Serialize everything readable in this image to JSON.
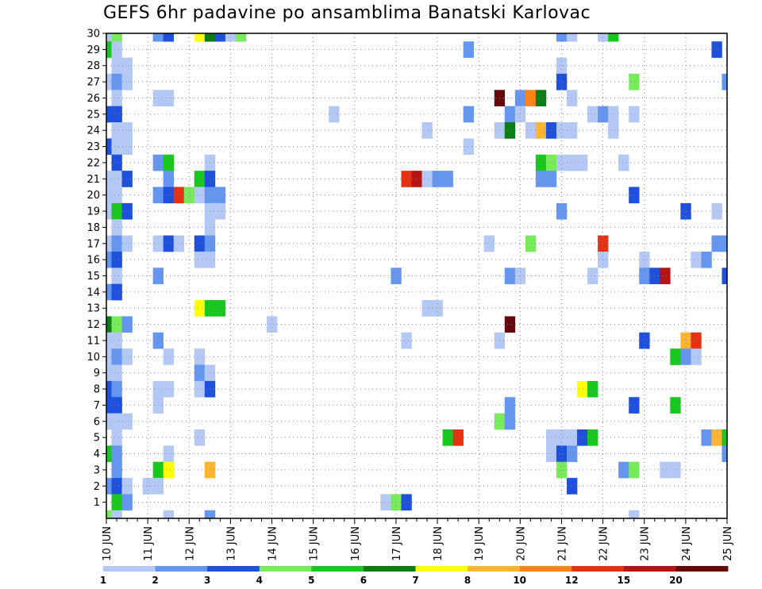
{
  "chart_data": {
    "type": "heatmap",
    "title": "GEFS 6hr padavine po ansamblima Banatski Karlovac",
    "xlabel": "",
    "ylabel": "",
    "x_tick_labels": [
      "10 JUN",
      "11 JUN",
      "12 JUN",
      "13 JUN",
      "14 JUN",
      "15 JUN",
      "16 JUN",
      "17 JUN",
      "18 JUN",
      "19 JUN",
      "20 JUN",
      "21 JUN",
      "22 JUN",
      "23 JUN",
      "24 JUN",
      "25 JUN"
    ],
    "x_unit": "6-hour step (4 steps per day, 10 JUN 00Z = 0)",
    "xlim": [
      0,
      60
    ],
    "y_tick_labels": [
      "1",
      "2",
      "3",
      "4",
      "5",
      "6",
      "7",
      "8",
      "9",
      "10",
      "11",
      "12",
      "13",
      "14",
      "15",
      "16",
      "17",
      "18",
      "19",
      "20",
      "21",
      "22",
      "23",
      "24",
      "25",
      "26",
      "27",
      "28",
      "29",
      "30"
    ],
    "ylim": [
      0,
      30
    ],
    "grid": true,
    "color_levels": [
      1,
      2,
      3,
      4,
      5,
      6,
      7,
      8,
      10,
      12,
      15,
      20
    ],
    "colorbar_labels": [
      "1",
      "2",
      "3",
      "4",
      "5",
      "6",
      "7",
      "8",
      "10",
      "12",
      "15",
      "20"
    ],
    "colorbar_colors": [
      "#b4c8f5",
      "#6496f0",
      "#1e50dc",
      "#78eb5a",
      "#19c81e",
      "#0a7d14",
      "#ffff0a",
      "#ffb432",
      "#ff8214",
      "#e63214",
      "#b41414",
      "#640a0a"
    ],
    "cells": [
      [
        30,
        0,
        0
      ],
      [
        30,
        1,
        3
      ],
      [
        30,
        5,
        1
      ],
      [
        30,
        6,
        2
      ],
      [
        30,
        9,
        6
      ],
      [
        30,
        10,
        5
      ],
      [
        30,
        11,
        2
      ],
      [
        30,
        12,
        0
      ],
      [
        30,
        13,
        3
      ],
      [
        30,
        44,
        1
      ],
      [
        30,
        45,
        0
      ],
      [
        30,
        48,
        0
      ],
      [
        30,
        49,
        4
      ],
      [
        29,
        0,
        4
      ],
      [
        29,
        1,
        0
      ],
      [
        29,
        35,
        1
      ],
      [
        29,
        59,
        2
      ],
      [
        28,
        1,
        0
      ],
      [
        28,
        2,
        0
      ],
      [
        28,
        44,
        0
      ],
      [
        27,
        0,
        0
      ],
      [
        27,
        1,
        1
      ],
      [
        27,
        2,
        0
      ],
      [
        27,
        44,
        2
      ],
      [
        27,
        51,
        3
      ],
      [
        27,
        60,
        1
      ],
      [
        26,
        1,
        0
      ],
      [
        26,
        5,
        0
      ],
      [
        26,
        6,
        0
      ],
      [
        26,
        38,
        11
      ],
      [
        26,
        40,
        1
      ],
      [
        26,
        41,
        8
      ],
      [
        26,
        42,
        5
      ],
      [
        26,
        45,
        0
      ],
      [
        25,
        0,
        2
      ],
      [
        25,
        1,
        2
      ],
      [
        25,
        22,
        0
      ],
      [
        25,
        35,
        1
      ],
      [
        25,
        39,
        1
      ],
      [
        25,
        40,
        0
      ],
      [
        25,
        47,
        0
      ],
      [
        25,
        48,
        1
      ],
      [
        25,
        49,
        0
      ],
      [
        25,
        51,
        0
      ],
      [
        24,
        1,
        0
      ],
      [
        24,
        2,
        0
      ],
      [
        24,
        31,
        0
      ],
      [
        24,
        38,
        0
      ],
      [
        24,
        39,
        5
      ],
      [
        24,
        41,
        0
      ],
      [
        24,
        42,
        7
      ],
      [
        24,
        43,
        2
      ],
      [
        24,
        44,
        0
      ],
      [
        24,
        45,
        0
      ],
      [
        24,
        49,
        0
      ],
      [
        23,
        0,
        2
      ],
      [
        23,
        1,
        0
      ],
      [
        23,
        2,
        0
      ],
      [
        23,
        35,
        0
      ],
      [
        22,
        1,
        2
      ],
      [
        22,
        5,
        1
      ],
      [
        22,
        6,
        4
      ],
      [
        22,
        10,
        0
      ],
      [
        22,
        42,
        4
      ],
      [
        22,
        43,
        3
      ],
      [
        22,
        44,
        0
      ],
      [
        22,
        45,
        0
      ],
      [
        22,
        46,
        0
      ],
      [
        22,
        50,
        0
      ],
      [
        21,
        0,
        0
      ],
      [
        21,
        1,
        0
      ],
      [
        21,
        2,
        2
      ],
      [
        21,
        6,
        1
      ],
      [
        21,
        9,
        4
      ],
      [
        21,
        10,
        2
      ],
      [
        21,
        29,
        9
      ],
      [
        21,
        30,
        10
      ],
      [
        21,
        31,
        0
      ],
      [
        21,
        32,
        1
      ],
      [
        21,
        33,
        1
      ],
      [
        21,
        42,
        1
      ],
      [
        21,
        43,
        1
      ],
      [
        20,
        0,
        0
      ],
      [
        20,
        1,
        0
      ],
      [
        20,
        5,
        1
      ],
      [
        20,
        6,
        2
      ],
      [
        20,
        7,
        9
      ],
      [
        20,
        8,
        3
      ],
      [
        20,
        9,
        0
      ],
      [
        20,
        10,
        1
      ],
      [
        20,
        11,
        1
      ],
      [
        20,
        51,
        2
      ],
      [
        19,
        0,
        0
      ],
      [
        19,
        1,
        4
      ],
      [
        19,
        2,
        2
      ],
      [
        19,
        10,
        0
      ],
      [
        19,
        11,
        0
      ],
      [
        19,
        44,
        1
      ],
      [
        19,
        56,
        2
      ],
      [
        19,
        59,
        0
      ],
      [
        18,
        1,
        0
      ],
      [
        18,
        10,
        0
      ],
      [
        17,
        0,
        0
      ],
      [
        17,
        1,
        1
      ],
      [
        17,
        2,
        0
      ],
      [
        17,
        5,
        0
      ],
      [
        17,
        6,
        2
      ],
      [
        17,
        7,
        0
      ],
      [
        17,
        9,
        2
      ],
      [
        17,
        10,
        1
      ],
      [
        17,
        37,
        0
      ],
      [
        17,
        41,
        3
      ],
      [
        17,
        48,
        9
      ],
      [
        17,
        59,
        1
      ],
      [
        17,
        60,
        1
      ],
      [
        16,
        0,
        1
      ],
      [
        16,
        1,
        2
      ],
      [
        16,
        9,
        0
      ],
      [
        16,
        10,
        0
      ],
      [
        16,
        48,
        0
      ],
      [
        16,
        52,
        0
      ],
      [
        16,
        57,
        0
      ],
      [
        16,
        58,
        1
      ],
      [
        15,
        1,
        0
      ],
      [
        15,
        5,
        1
      ],
      [
        15,
        28,
        1
      ],
      [
        15,
        39,
        1
      ],
      [
        15,
        40,
        0
      ],
      [
        15,
        47,
        0
      ],
      [
        15,
        52,
        1
      ],
      [
        15,
        53,
        2
      ],
      [
        15,
        54,
        10
      ],
      [
        15,
        60,
        2
      ],
      [
        14,
        0,
        1
      ],
      [
        14,
        1,
        2
      ],
      [
        13,
        9,
        6
      ],
      [
        13,
        10,
        4
      ],
      [
        13,
        11,
        4
      ],
      [
        13,
        31,
        0
      ],
      [
        13,
        32,
        0
      ],
      [
        12,
        0,
        5
      ],
      [
        12,
        1,
        3
      ],
      [
        12,
        2,
        1
      ],
      [
        12,
        16,
        0
      ],
      [
        12,
        39,
        11
      ],
      [
        11,
        0,
        0
      ],
      [
        11,
        1,
        0
      ],
      [
        11,
        5,
        1
      ],
      [
        11,
        29,
        0
      ],
      [
        11,
        38,
        0
      ],
      [
        11,
        52,
        2
      ],
      [
        11,
        56,
        7
      ],
      [
        11,
        57,
        9
      ],
      [
        10,
        0,
        0
      ],
      [
        10,
        1,
        1
      ],
      [
        10,
        2,
        0
      ],
      [
        10,
        6,
        0
      ],
      [
        10,
        9,
        0
      ],
      [
        10,
        55,
        4
      ],
      [
        10,
        56,
        1
      ],
      [
        10,
        57,
        0
      ],
      [
        9,
        0,
        0
      ],
      [
        9,
        1,
        0
      ],
      [
        9,
        9,
        1
      ],
      [
        9,
        10,
        0
      ],
      [
        8,
        0,
        2
      ],
      [
        8,
        1,
        1
      ],
      [
        8,
        5,
        0
      ],
      [
        8,
        6,
        0
      ],
      [
        8,
        9,
        0
      ],
      [
        8,
        10,
        2
      ],
      [
        8,
        46,
        6
      ],
      [
        8,
        47,
        4
      ],
      [
        7,
        0,
        2
      ],
      [
        7,
        1,
        2
      ],
      [
        7,
        5,
        0
      ],
      [
        7,
        39,
        1
      ],
      [
        7,
        51,
        2
      ],
      [
        7,
        55,
        4
      ],
      [
        6,
        0,
        0
      ],
      [
        6,
        1,
        0
      ],
      [
        6,
        2,
        0
      ],
      [
        6,
        38,
        3
      ],
      [
        6,
        39,
        1
      ],
      [
        5,
        1,
        0
      ],
      [
        5,
        9,
        0
      ],
      [
        5,
        33,
        4
      ],
      [
        5,
        34,
        9
      ],
      [
        5,
        43,
        0
      ],
      [
        5,
        44,
        0
      ],
      [
        5,
        45,
        0
      ],
      [
        5,
        46,
        2
      ],
      [
        5,
        47,
        4
      ],
      [
        5,
        58,
        1
      ],
      [
        5,
        59,
        7
      ],
      [
        5,
        60,
        4
      ],
      [
        4,
        0,
        4
      ],
      [
        4,
        1,
        1
      ],
      [
        4,
        6,
        0
      ],
      [
        4,
        43,
        0
      ],
      [
        4,
        44,
        2
      ],
      [
        4,
        45,
        1
      ],
      [
        4,
        60,
        1
      ],
      [
        3,
        1,
        1
      ],
      [
        3,
        5,
        4
      ],
      [
        3,
        6,
        6
      ],
      [
        3,
        10,
        7
      ],
      [
        3,
        44,
        3
      ],
      [
        3,
        50,
        1
      ],
      [
        3,
        51,
        3
      ],
      [
        3,
        54,
        0
      ],
      [
        3,
        55,
        0
      ],
      [
        2,
        0,
        1
      ],
      [
        2,
        1,
        2
      ],
      [
        2,
        2,
        0
      ],
      [
        2,
        4,
        0
      ],
      [
        2,
        5,
        0
      ],
      [
        2,
        45,
        2
      ],
      [
        1,
        1,
        4
      ],
      [
        1,
        2,
        1
      ],
      [
        1,
        27,
        0
      ],
      [
        1,
        28,
        3
      ],
      [
        1,
        29,
        2
      ],
      [
        0,
        0,
        3
      ],
      [
        0,
        1,
        0
      ],
      [
        0,
        6,
        0
      ],
      [
        0,
        10,
        1
      ],
      [
        0,
        51,
        0
      ]
    ]
  }
}
